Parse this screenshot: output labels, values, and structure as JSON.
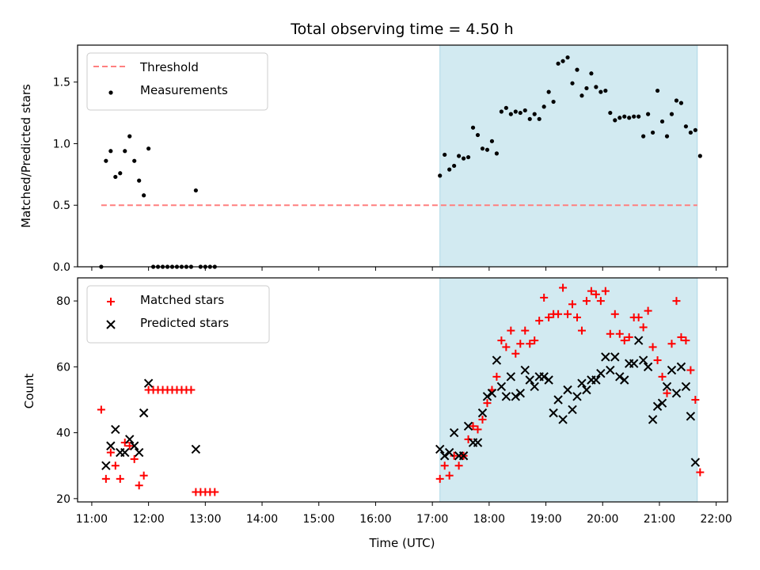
{
  "title": "Total observing time = 4.50 h",
  "colors": {
    "threshold": "#ff7f7f",
    "measurement": "#000000",
    "matched": "#ff0000",
    "predicted": "#000000",
    "shade": "#add8e6"
  },
  "chart_data": [
    {
      "type": "scatter",
      "xlabel": "",
      "ylabel": "Matched/Predicted stars",
      "xlim": [
        "10:45",
        "22:12"
      ],
      "ylim": [
        0,
        1.8
      ],
      "xticks": [
        "11:00",
        "12:00",
        "13:00",
        "14:00",
        "15:00",
        "16:00",
        "17:00",
        "18:00",
        "19:00",
        "20:00",
        "21:00",
        "22:00"
      ],
      "yticks": [
        0.0,
        0.5,
        1.0,
        1.5
      ],
      "ytick_labels": [
        "0.0",
        "0.5",
        "1.0",
        "1.5"
      ],
      "grid": false,
      "legend": "upper left",
      "shaded_region": [
        "17:08",
        "21:40"
      ],
      "threshold": {
        "name": "Threshold",
        "y": 0.5,
        "x": [
          "11:10",
          "21:40"
        ],
        "style": "dashed"
      },
      "series": [
        {
          "name": "Measurements",
          "marker": "dot",
          "points": [
            [
              "11:10",
              0.0
            ],
            [
              "11:15",
              0.86
            ],
            [
              "11:20",
              0.94
            ],
            [
              "11:25",
              0.73
            ],
            [
              "11:30",
              0.76
            ],
            [
              "11:35",
              0.94
            ],
            [
              "11:40",
              1.06
            ],
            [
              "11:45",
              0.86
            ],
            [
              "11:50",
              0.7
            ],
            [
              "11:55",
              0.58
            ],
            [
              "12:00",
              0.96
            ],
            [
              "12:05",
              0.0
            ],
            [
              "12:10",
              0.0
            ],
            [
              "12:15",
              0.0
            ],
            [
              "12:20",
              0.0
            ],
            [
              "12:25",
              0.0
            ],
            [
              "12:30",
              0.0
            ],
            [
              "12:35",
              0.0
            ],
            [
              "12:40",
              0.0
            ],
            [
              "12:45",
              0.0
            ],
            [
              "12:50",
              0.62
            ],
            [
              "12:55",
              0.0
            ],
            [
              "13:00",
              0.0
            ],
            [
              "13:05",
              0.0
            ],
            [
              "13:10",
              0.0
            ],
            [
              "17:08",
              0.74
            ],
            [
              "17:13",
              0.91
            ],
            [
              "17:18",
              0.79
            ],
            [
              "17:23",
              0.82
            ],
            [
              "17:28",
              0.9
            ],
            [
              "17:33",
              0.88
            ],
            [
              "17:38",
              0.89
            ],
            [
              "17:43",
              1.13
            ],
            [
              "17:48",
              1.07
            ],
            [
              "17:53",
              0.96
            ],
            [
              "17:58",
              0.95
            ],
            [
              "18:03",
              1.02
            ],
            [
              "18:08",
              0.92
            ],
            [
              "18:13",
              1.26
            ],
            [
              "18:18",
              1.29
            ],
            [
              "18:23",
              1.24
            ],
            [
              "18:28",
              1.26
            ],
            [
              "18:33",
              1.25
            ],
            [
              "18:38",
              1.27
            ],
            [
              "18:43",
              1.2
            ],
            [
              "18:48",
              1.24
            ],
            [
              "18:53",
              1.2
            ],
            [
              "18:58",
              1.3
            ],
            [
              "19:03",
              1.42
            ],
            [
              "19:08",
              1.34
            ],
            [
              "19:13",
              1.65
            ],
            [
              "19:18",
              1.67
            ],
            [
              "19:23",
              1.7
            ],
            [
              "19:28",
              1.49
            ],
            [
              "19:33",
              1.6
            ],
            [
              "19:38",
              1.39
            ],
            [
              "19:43",
              1.45
            ],
            [
              "19:48",
              1.57
            ],
            [
              "19:53",
              1.46
            ],
            [
              "19:58",
              1.42
            ],
            [
              "20:03",
              1.43
            ],
            [
              "20:08",
              1.25
            ],
            [
              "20:13",
              1.19
            ],
            [
              "20:18",
              1.21
            ],
            [
              "20:23",
              1.22
            ],
            [
              "20:28",
              1.21
            ],
            [
              "20:33",
              1.22
            ],
            [
              "20:38",
              1.22
            ],
            [
              "20:43",
              1.06
            ],
            [
              "20:48",
              1.24
            ],
            [
              "20:53",
              1.09
            ],
            [
              "20:58",
              1.43
            ],
            [
              "21:03",
              1.18
            ],
            [
              "21:08",
              1.06
            ],
            [
              "21:13",
              1.24
            ],
            [
              "21:18",
              1.35
            ],
            [
              "21:23",
              1.33
            ],
            [
              "21:28",
              1.14
            ],
            [
              "21:33",
              1.09
            ],
            [
              "21:38",
              1.11
            ],
            [
              "21:43",
              0.9
            ]
          ]
        }
      ]
    },
    {
      "type": "scatter",
      "xlabel": "Time (UTC)",
      "ylabel": "Count",
      "xlim": [
        "10:45",
        "22:12"
      ],
      "ylim": [
        19,
        87
      ],
      "xticks": [
        "11:00",
        "12:00",
        "13:00",
        "14:00",
        "15:00",
        "16:00",
        "17:00",
        "18:00",
        "19:00",
        "20:00",
        "21:00",
        "22:00"
      ],
      "yticks": [
        20,
        40,
        60,
        80
      ],
      "ytick_labels": [
        "20",
        "40",
        "60",
        "80"
      ],
      "grid": false,
      "legend": "upper left",
      "shaded_region": [
        "17:08",
        "21:40"
      ],
      "series": [
        {
          "name": "Matched stars",
          "marker": "plus",
          "points": [
            [
              "11:10",
              47
            ],
            [
              "11:15",
              26
            ],
            [
              "11:20",
              34
            ],
            [
              "11:25",
              30
            ],
            [
              "11:30",
              26
            ],
            [
              "11:35",
              37
            ],
            [
              "11:40",
              36
            ],
            [
              "11:45",
              32
            ],
            [
              "11:50",
              24
            ],
            [
              "11:55",
              27
            ],
            [
              "12:00",
              53
            ],
            [
              "12:05",
              53
            ],
            [
              "12:10",
              53
            ],
            [
              "12:15",
              53
            ],
            [
              "12:20",
              53
            ],
            [
              "12:25",
              53
            ],
            [
              "12:30",
              53
            ],
            [
              "12:35",
              53
            ],
            [
              "12:40",
              53
            ],
            [
              "12:45",
              53
            ],
            [
              "12:50",
              22
            ],
            [
              "12:55",
              22
            ],
            [
              "13:00",
              22
            ],
            [
              "13:05",
              22
            ],
            [
              "13:10",
              22
            ],
            [
              "17:08",
              26
            ],
            [
              "17:13",
              30
            ],
            [
              "17:18",
              27
            ],
            [
              "17:23",
              33
            ],
            [
              "17:28",
              30
            ],
            [
              "17:33",
              33
            ],
            [
              "17:38",
              38
            ],
            [
              "17:43",
              42
            ],
            [
              "17:48",
              41
            ],
            [
              "17:53",
              44
            ],
            [
              "17:58",
              49
            ],
            [
              "18:03",
              53
            ],
            [
              "18:08",
              57
            ],
            [
              "18:13",
              68
            ],
            [
              "18:18",
              66
            ],
            [
              "18:23",
              71
            ],
            [
              "18:28",
              64
            ],
            [
              "18:33",
              67
            ],
            [
              "18:38",
              71
            ],
            [
              "18:43",
              67
            ],
            [
              "18:48",
              68
            ],
            [
              "18:53",
              74
            ],
            [
              "18:58",
              81
            ],
            [
              "19:03",
              75
            ],
            [
              "19:08",
              76
            ],
            [
              "19:13",
              76
            ],
            [
              "19:18",
              84
            ],
            [
              "19:23",
              76
            ],
            [
              "19:28",
              79
            ],
            [
              "19:33",
              75
            ],
            [
              "19:38",
              71
            ],
            [
              "19:43",
              80
            ],
            [
              "19:48",
              83
            ],
            [
              "19:53",
              82
            ],
            [
              "19:58",
              80
            ],
            [
              "20:03",
              83
            ],
            [
              "20:08",
              70
            ],
            [
              "20:13",
              76
            ],
            [
              "20:18",
              70
            ],
            [
              "20:23",
              68
            ],
            [
              "20:28",
              69
            ],
            [
              "20:33",
              75
            ],
            [
              "20:38",
              75
            ],
            [
              "20:43",
              72
            ],
            [
              "20:48",
              77
            ],
            [
              "20:53",
              66
            ],
            [
              "20:58",
              62
            ],
            [
              "21:03",
              57
            ],
            [
              "21:08",
              52
            ],
            [
              "21:13",
              67
            ],
            [
              "21:18",
              80
            ],
            [
              "21:23",
              69
            ],
            [
              "21:28",
              68
            ],
            [
              "21:33",
              59
            ],
            [
              "21:38",
              50
            ],
            [
              "21:43",
              28
            ]
          ]
        },
        {
          "name": "Predicted stars",
          "marker": "x",
          "points": [
            [
              "11:15",
              30
            ],
            [
              "11:20",
              36
            ],
            [
              "11:25",
              41
            ],
            [
              "11:30",
              34
            ],
            [
              "11:35",
              34
            ],
            [
              "11:40",
              38
            ],
            [
              "11:45",
              36
            ],
            [
              "11:50",
              34
            ],
            [
              "11:55",
              46
            ],
            [
              "12:00",
              55
            ],
            [
              "12:50",
              35
            ],
            [
              "17:08",
              35
            ],
            [
              "17:13",
              33
            ],
            [
              "17:18",
              34
            ],
            [
              "17:23",
              40
            ],
            [
              "17:28",
              33
            ],
            [
              "17:33",
              33
            ],
            [
              "17:38",
              42
            ],
            [
              "17:43",
              37
            ],
            [
              "17:48",
              37
            ],
            [
              "17:53",
              46
            ],
            [
              "17:58",
              51
            ],
            [
              "18:03",
              52
            ],
            [
              "18:08",
              62
            ],
            [
              "18:13",
              54
            ],
            [
              "18:18",
              51
            ],
            [
              "18:23",
              57
            ],
            [
              "18:28",
              51
            ],
            [
              "18:33",
              52
            ],
            [
              "18:38",
              59
            ],
            [
              "18:43",
              56
            ],
            [
              "18:48",
              54
            ],
            [
              "18:53",
              57
            ],
            [
              "18:58",
              57
            ],
            [
              "19:03",
              56
            ],
            [
              "19:08",
              46
            ],
            [
              "19:13",
              50
            ],
            [
              "19:18",
              44
            ],
            [
              "19:23",
              53
            ],
            [
              "19:28",
              47
            ],
            [
              "19:33",
              51
            ],
            [
              "19:38",
              55
            ],
            [
              "19:43",
              53
            ],
            [
              "19:48",
              56
            ],
            [
              "19:53",
              56
            ],
            [
              "19:58",
              58
            ],
            [
              "20:03",
              63
            ],
            [
              "20:08",
              59
            ],
            [
              "20:13",
              63
            ],
            [
              "20:18",
              57
            ],
            [
              "20:23",
              56
            ],
            [
              "20:28",
              61
            ],
            [
              "20:33",
              61
            ],
            [
              "20:38",
              68
            ],
            [
              "20:43",
              62
            ],
            [
              "20:48",
              60
            ],
            [
              "20:53",
              44
            ],
            [
              "20:58",
              48
            ],
            [
              "21:03",
              49
            ],
            [
              "21:08",
              54
            ],
            [
              "21:13",
              59
            ],
            [
              "21:18",
              52
            ],
            [
              "21:23",
              60
            ],
            [
              "21:28",
              54
            ],
            [
              "21:33",
              45
            ],
            [
              "21:38",
              31
            ]
          ]
        }
      ]
    }
  ]
}
